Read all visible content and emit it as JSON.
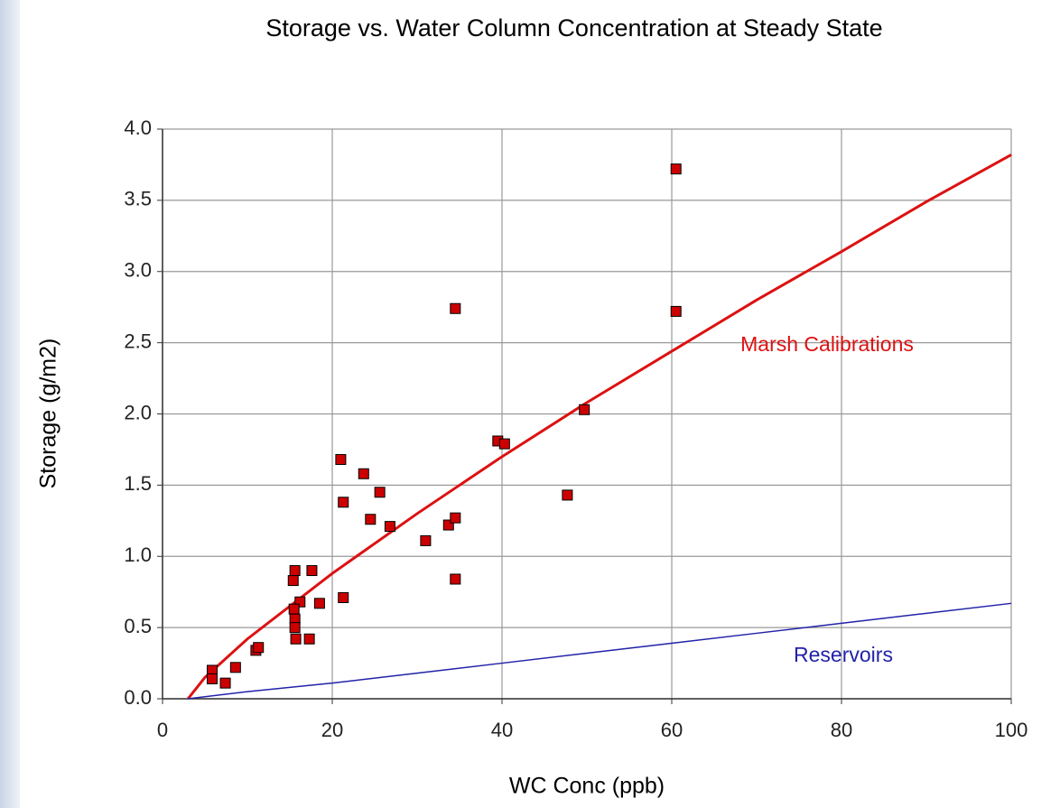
{
  "chart_data": {
    "type": "scatter",
    "title": "Storage vs. Water Column Concentration at Steady State",
    "x_label": "WC Conc (ppb)",
    "y_label": "Storage (g/m2)",
    "xlim": [
      0,
      100
    ],
    "ylim": [
      0,
      4.0
    ],
    "xticks": [
      0,
      20,
      40,
      60,
      80,
      100
    ],
    "yticks": [
      {
        "value": 0,
        "label": "0.0"
      },
      0.5,
      {
        "value": 1,
        "label": "1.0"
      },
      1.5,
      {
        "value": 2,
        "label": "2.0"
      },
      2.5,
      {
        "value": 3,
        "label": "3.0"
      },
      3.5,
      {
        "value": 4,
        "label": "4.0"
      }
    ],
    "grid": true,
    "series": [
      {
        "type": "scatter",
        "color": "#cc0000",
        "x": [
          5.85,
          5.85,
          7.4,
          8.6,
          11.0,
          11.3,
          15.6,
          15.4,
          17.6,
          16.2,
          15.5,
          15.6,
          15.6,
          15.7,
          17.3,
          18.5,
          21.0,
          21.3,
          21.3,
          23.7,
          24.5,
          25.6,
          26.8,
          31.0,
          33.7,
          34.5,
          34.5,
          34.5,
          39.5,
          40.3,
          47.7,
          49.7,
          60.5,
          60.5
        ],
        "values": [
          0.2,
          0.14,
          0.11,
          0.22,
          0.34,
          0.36,
          0.9,
          0.83,
          0.9,
          0.68,
          0.63,
          0.56,
          0.5,
          0.42,
          0.42,
          0.67,
          1.68,
          1.38,
          0.71,
          1.58,
          1.26,
          1.45,
          1.21,
          1.11,
          1.22,
          1.27,
          2.74,
          0.84,
          1.81,
          1.79,
          1.43,
          2.03,
          3.72,
          2.72
        ]
      },
      {
        "type": "line",
        "name": "Marsh Calibrations",
        "color": "#dd1111",
        "x": [
          3,
          5,
          10,
          20,
          30,
          40,
          50,
          60,
          70,
          80,
          90,
          100
        ],
        "values": [
          0,
          0.15,
          0.42,
          0.88,
          1.3,
          1.7,
          2.08,
          2.44,
          2.8,
          3.14,
          3.49,
          3.82
        ]
      },
      {
        "type": "line",
        "name": "Reservoirs",
        "color": "#2222aa",
        "x": [
          3,
          10,
          20,
          30,
          40,
          50,
          60,
          70,
          80,
          90,
          100
        ],
        "values": [
          0,
          0.05,
          0.11,
          0.18,
          0.25,
          0.32,
          0.39,
          0.46,
          0.53,
          0.6,
          0.67
        ]
      }
    ]
  }
}
